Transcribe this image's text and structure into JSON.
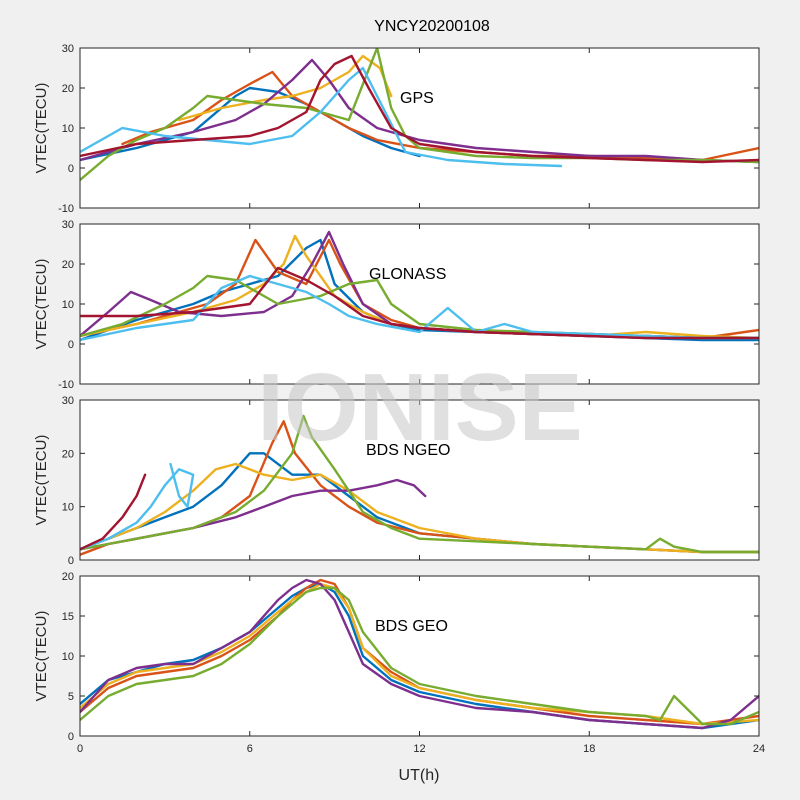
{
  "figure": {
    "title": "YNCY20200108",
    "xlabel": "UT(h)",
    "watermark": "IONISE",
    "xticks": [
      "0",
      "6",
      "12",
      "18",
      "24"
    ]
  },
  "colors": [
    "#0072BD",
    "#D95319",
    "#EDB120",
    "#7E2F8E",
    "#77AC30",
    "#4DBEEE",
    "#A2142F"
  ],
  "chart_data": [
    {
      "type": "line",
      "annotation": "GPS",
      "ylabel": "VTEC(TECU)",
      "xlim": [
        0,
        24
      ],
      "ylim": [
        -10,
        30
      ],
      "yticks": [
        "-10",
        "0",
        "10",
        "20",
        "30"
      ],
      "series": [
        {
          "color": "#0072BD",
          "x": [
            0,
            2,
            4,
            5.5,
            6,
            7,
            8,
            9,
            10,
            11,
            12
          ],
          "y": [
            2,
            5,
            9,
            18,
            20,
            19,
            16,
            12,
            8,
            5,
            3
          ]
        },
        {
          "color": "#D95319",
          "x": [
            1.5,
            2.5,
            4,
            5,
            6,
            6.8,
            7.5,
            8.5,
            9.5,
            10.5,
            12,
            14,
            16,
            18,
            20,
            22,
            24
          ],
          "y": [
            6,
            9,
            12,
            17,
            21,
            24,
            18,
            14,
            10,
            7,
            5,
            4,
            3,
            3,
            2.5,
            2,
            5
          ]
        },
        {
          "color": "#EDB120",
          "x": [
            3.5,
            5,
            6.5,
            7.5,
            8.5,
            9.5,
            10,
            10.6,
            11
          ],
          "y": [
            12,
            15,
            17,
            18,
            20,
            24,
            28,
            25,
            18
          ]
        },
        {
          "color": "#7E2F8E",
          "x": [
            0,
            2,
            4,
            5.5,
            6.5,
            7.5,
            8.2,
            8.8,
            9.5,
            10.5,
            12,
            14,
            16,
            18,
            20,
            22,
            24
          ],
          "y": [
            2,
            6,
            9,
            12,
            16,
            22,
            27,
            22,
            15,
            10,
            7,
            5,
            4,
            3,
            3,
            2,
            1.5
          ]
        },
        {
          "color": "#77AC30",
          "x": [
            0,
            1,
            2,
            3,
            4,
            4.5,
            5.5,
            6.5,
            8,
            9.5,
            10.5,
            11,
            11.5,
            12,
            13,
            14,
            16,
            18,
            20,
            22,
            24
          ],
          "y": [
            -3,
            3,
            7,
            10,
            15,
            18,
            17,
            16,
            15,
            12,
            30,
            15,
            8,
            5,
            4,
            3,
            2.5,
            2.5,
            2,
            2,
            1.5
          ]
        },
        {
          "color": "#4DBEEE",
          "x": [
            0,
            1.5,
            3,
            4.5,
            6,
            7.5,
            8.5,
            9.5,
            10,
            10.5,
            11.5,
            13,
            15,
            17
          ],
          "y": [
            4,
            10,
            8,
            7,
            6,
            8,
            14,
            22,
            25,
            18,
            4,
            2,
            1,
            0.5
          ]
        },
        {
          "color": "#A2142F",
          "x": [
            0,
            2,
            4,
            6,
            7,
            8,
            8.5,
            9,
            9.6,
            10.2,
            11,
            12,
            14,
            16,
            18,
            20,
            22,
            24
          ],
          "y": [
            3,
            6,
            7,
            8,
            10,
            14,
            22,
            26,
            28,
            20,
            10,
            6,
            4,
            3,
            2.5,
            2,
            1.5,
            2
          ]
        }
      ]
    },
    {
      "type": "line",
      "annotation": "GLONASS",
      "ylabel": "VTEC(TECU)",
      "xlim": [
        0,
        24
      ],
      "ylim": [
        -10,
        30
      ],
      "yticks": [
        "-10",
        "0",
        "10",
        "20",
        "30"
      ],
      "series": [
        {
          "color": "#0072BD",
          "x": [
            0,
            2,
            4,
            5,
            6,
            7,
            8,
            8.5,
            9,
            10,
            11,
            12,
            14,
            16,
            18,
            20,
            22,
            24
          ],
          "y": [
            1,
            6,
            10,
            13,
            15,
            17,
            24,
            26,
            15,
            8,
            5,
            3.5,
            3,
            2.5,
            2,
            1.5,
            1,
            1
          ]
        },
        {
          "color": "#D95319",
          "x": [
            0,
            2,
            3,
            4.5,
            5.5,
            6.2,
            7,
            8,
            8.8,
            9.2,
            10,
            11,
            12,
            14,
            16,
            18,
            20,
            22,
            24
          ],
          "y": [
            2,
            5,
            7,
            10,
            15,
            26,
            18,
            15,
            26,
            20,
            10,
            6,
            4,
            3,
            2.5,
            2.5,
            2,
            1.5,
            3.5
          ]
        },
        {
          "color": "#EDB120",
          "x": [
            0,
            2,
            4,
            5.5,
            6.5,
            7.2,
            7.6,
            8,
            9,
            10,
            11,
            12,
            14,
            16,
            18,
            20,
            22,
            24
          ],
          "y": [
            2,
            5,
            8,
            11,
            15,
            20,
            27,
            22,
            12,
            8,
            5,
            4,
            3,
            2.5,
            2,
            3,
            2,
            1.5
          ]
        },
        {
          "color": "#7E2F8E",
          "x": [
            0,
            1,
            1.8,
            2.5,
            3.5,
            5,
            6.5,
            7.5,
            8.2,
            8.8,
            9.3,
            10,
            11,
            12,
            14,
            16,
            18,
            20,
            22,
            24
          ],
          "y": [
            2,
            8,
            13,
            11,
            8,
            7,
            8,
            12,
            20,
            28,
            20,
            10,
            5,
            4,
            3,
            2.5,
            2,
            2,
            1.5,
            1.5
          ]
        },
        {
          "color": "#77AC30",
          "x": [
            0,
            1.5,
            3,
            4,
            4.5,
            5.5,
            7,
            8.5,
            9.5,
            10.5,
            11,
            12,
            14,
            16,
            18,
            20,
            22,
            24
          ],
          "y": [
            2,
            5,
            10,
            14,
            17,
            16,
            10,
            12,
            15,
            16,
            10,
            5,
            3.5,
            3,
            2.5,
            2,
            1.5,
            1.5
          ]
        },
        {
          "color": "#4DBEEE",
          "x": [
            0,
            2,
            4,
            5,
            6,
            7,
            8,
            8.8,
            9.5,
            10.5,
            12,
            13,
            14,
            15,
            16,
            18,
            20,
            22,
            24
          ],
          "y": [
            1,
            4,
            6,
            14,
            17,
            15,
            13,
            10,
            7,
            5,
            3,
            9,
            3,
            5,
            3,
            2.5,
            2,
            1.5,
            1.5
          ]
        },
        {
          "color": "#A2142F",
          "x": [
            0,
            2,
            4,
            6,
            7,
            8,
            9,
            10,
            11,
            12,
            14,
            16,
            18,
            20,
            22,
            24
          ],
          "y": [
            7,
            7,
            8,
            10,
            19,
            16,
            12,
            7,
            5,
            4,
            3,
            2.5,
            2,
            1.5,
            1.5,
            1.5
          ]
        }
      ]
    },
    {
      "type": "line",
      "annotation": "BDS NGEO",
      "ylabel": "VTEC(TECU)",
      "xlim": [
        0,
        24
      ],
      "ylim": [
        0,
        30
      ],
      "yticks": [
        "0",
        "10",
        "20",
        "30"
      ],
      "series": [
        {
          "color": "#0072BD",
          "x": [
            0,
            1,
            2,
            3,
            4,
            5,
            5.5,
            6,
            6.5,
            7.5,
            8.5,
            9.5,
            10.5,
            12,
            14,
            16,
            18,
            20,
            22,
            24
          ],
          "y": [
            2,
            4,
            6,
            8,
            10,
            14,
            17,
            20,
            20,
            16,
            16,
            12,
            8,
            5,
            4,
            3,
            2.5,
            2,
            1.5,
            1.5
          ]
        },
        {
          "color": "#D95319",
          "x": [
            0,
            1,
            2,
            3,
            4,
            5,
            6,
            6.8,
            7.2,
            7.6,
            8.5,
            9.5,
            10.5,
            12,
            14,
            16,
            18,
            20,
            22,
            24
          ],
          "y": [
            1,
            3,
            4,
            5,
            6,
            8,
            12,
            22,
            26,
            20,
            14,
            10,
            7,
            5,
            4,
            3,
            2.5,
            2,
            1.5,
            1.5
          ]
        },
        {
          "color": "#EDB120",
          "x": [
            0,
            1,
            2,
            3,
            4,
            4.8,
            5.5,
            6.5,
            7.5,
            8.5,
            9.5,
            10.5,
            12,
            14,
            16,
            18,
            20,
            22,
            24
          ],
          "y": [
            2,
            4,
            6,
            9,
            13,
            17,
            18,
            16,
            15,
            16,
            13,
            9,
            6,
            4,
            3,
            2.5,
            2,
            1.5,
            1.5
          ]
        },
        {
          "color": "#7E2F8E",
          "x": [
            0,
            2,
            4,
            5.5,
            6.5,
            7.5,
            8.5,
            9.5,
            10.5,
            11.2,
            11.8,
            12.2
          ],
          "y": [
            2,
            4,
            6,
            8,
            10,
            12,
            13,
            13,
            14,
            15,
            14,
            12
          ]
        },
        {
          "color": "#77AC30",
          "x": [
            0,
            2,
            4,
            5.5,
            6.5,
            7.5,
            7.9,
            8.2,
            8.6,
            9,
            10,
            11,
            12,
            14,
            16,
            18,
            20,
            20.5,
            21,
            22,
            24
          ],
          "y": [
            2,
            4,
            6,
            9,
            13,
            20,
            27,
            23,
            20,
            17,
            9,
            6,
            4,
            3.5,
            3,
            2.5,
            2,
            4,
            2.5,
            1.5,
            1.5
          ]
        },
        {
          "color": "#4DBEEE",
          "x": [
            0,
            1,
            2,
            2.5,
            3,
            3.5,
            4,
            3.8,
            3.5,
            3.2
          ],
          "y": [
            2,
            4,
            7,
            10,
            14,
            17,
            16,
            10,
            12,
            18
          ]
        },
        {
          "color": "#A2142F",
          "x": [
            0,
            0.8,
            1.5,
            2,
            2.3
          ],
          "y": [
            2,
            4,
            8,
            12,
            16
          ]
        }
      ]
    },
    {
      "type": "line",
      "annotation": "BDS GEO",
      "ylabel": "VTEC(TECU)",
      "xlim": [
        0,
        24
      ],
      "ylim": [
        0,
        20
      ],
      "yticks": [
        "0",
        "5",
        "10",
        "15",
        "20"
      ],
      "series": [
        {
          "color": "#0072BD",
          "x": [
            0,
            1,
            2,
            3,
            4,
            5,
            6,
            7,
            7.5,
            8,
            8.5,
            9,
            9.5,
            10,
            11,
            12,
            14,
            16,
            18,
            20,
            22,
            24
          ],
          "y": [
            4,
            7,
            8,
            9,
            9.5,
            11,
            13,
            16,
            17.5,
            18.5,
            19,
            18,
            15,
            10,
            7,
            5.5,
            4,
            3,
            2,
            1.5,
            1,
            2
          ]
        },
        {
          "color": "#D95319",
          "x": [
            0,
            1,
            2,
            3,
            4,
            5,
            6,
            7,
            7.5,
            8,
            8.5,
            9,
            9.5,
            10,
            11,
            12,
            14,
            16,
            18,
            20,
            22,
            24
          ],
          "y": [
            3,
            6,
            7.5,
            8,
            8.5,
            10,
            12,
            15,
            17,
            18.5,
            19.5,
            19,
            16,
            11,
            8,
            6,
            4.5,
            3.5,
            2.5,
            2,
            1.5,
            2.5
          ]
        },
        {
          "color": "#EDB120",
          "x": [
            0,
            1,
            2,
            3,
            4,
            5,
            6,
            7,
            7.5,
            8,
            8.5,
            9,
            9.5,
            10,
            11,
            12,
            14,
            16,
            18,
            20,
            22,
            24
          ],
          "y": [
            3.5,
            6.5,
            8,
            8.5,
            9,
            10.5,
            12.5,
            15.5,
            17,
            18,
            19,
            18.5,
            16,
            11,
            7.5,
            6,
            4.5,
            3.5,
            3,
            2.5,
            1.5,
            2
          ]
        },
        {
          "color": "#7E2F8E",
          "x": [
            0,
            1,
            2,
            3,
            4,
            5,
            6,
            7,
            7.5,
            8,
            8.5,
            9,
            9.5,
            10,
            11,
            12,
            14,
            16,
            18,
            20,
            22,
            23,
            24
          ],
          "y": [
            3,
            7,
            8.5,
            9,
            9,
            11,
            13,
            17,
            18.5,
            19.5,
            19,
            17,
            13,
            9,
            6.5,
            5,
            3.5,
            3,
            2,
            1.5,
            1,
            2,
            5
          ]
        },
        {
          "color": "#77AC30",
          "x": [
            0,
            1,
            2,
            3,
            4,
            5,
            6,
            7,
            7.5,
            8,
            8.5,
            9,
            9.5,
            10,
            11,
            12,
            14,
            16,
            18,
            20,
            20.5,
            21,
            22,
            23,
            24
          ],
          "y": [
            2,
            5,
            6.5,
            7,
            7.5,
            9,
            11.5,
            15,
            16.5,
            18,
            18.5,
            18.5,
            17,
            13,
            8.5,
            6.5,
            5,
            4,
            3,
            2.5,
            2,
            5,
            1.5,
            1.5,
            3
          ]
        }
      ]
    }
  ]
}
